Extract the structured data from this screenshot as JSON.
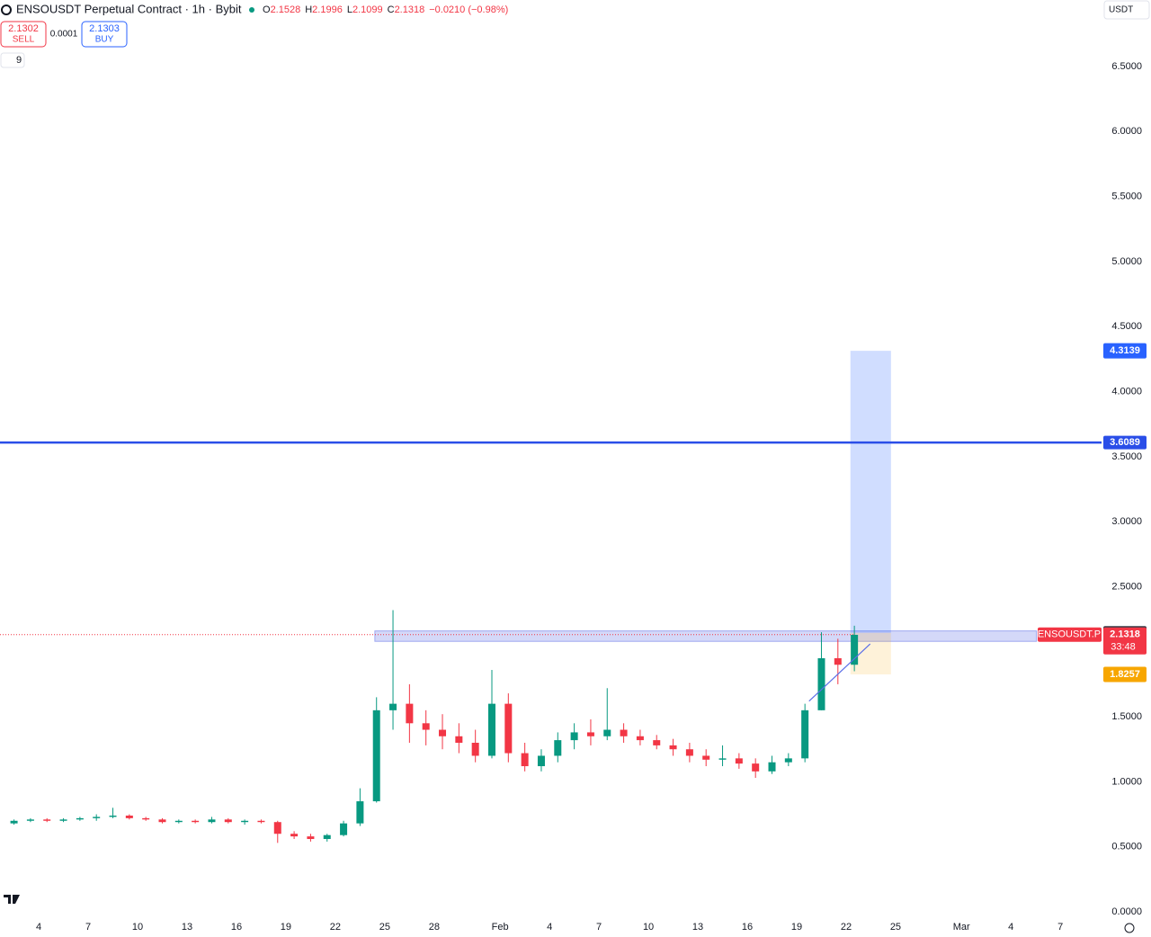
{
  "header": {
    "title": "ENSOUSDT Perpetual Contract · 1h · Bybit",
    "ohlc": [
      {
        "label": "O",
        "value": "2.1528"
      },
      {
        "label": "H",
        "value": "2.1996"
      },
      {
        "label": "L",
        "value": "2.1099"
      },
      {
        "label": "C",
        "value": "2.1318"
      }
    ],
    "change": "−0.0210 (−0.98%)",
    "sell": {
      "price": "2.1302",
      "label": "SELL"
    },
    "spread": "0.0001",
    "buy": {
      "price": "2.1303",
      "label": "BUY"
    },
    "indicators": "9",
    "currency": "USDT"
  },
  "chart_data": {
    "type": "candlestick",
    "x": [
      2.5,
      3.5,
      4.5,
      5.5,
      6.5,
      7.5,
      8.5,
      9.5,
      10.5,
      11.5,
      12.5,
      13.5,
      14.5,
      15.5,
      16.5,
      17.5,
      18.5,
      19.5,
      20.5,
      21.5,
      22.5,
      23.5,
      24.5,
      25.5,
      26.5,
      27.5,
      28.5,
      29.5,
      30.5,
      31.5,
      32.5,
      33.5,
      34.5,
      35.5,
      36.5,
      37.5,
      38.5,
      39.5,
      40.5,
      41.5,
      42.5,
      43.5,
      44.5,
      45.5,
      46.5,
      47.5,
      48.5,
      49.5,
      50.5,
      51.5,
      52.5,
      53.5
    ],
    "open": [
      0.68,
      0.7,
      0.71,
      0.7,
      0.71,
      0.72,
      0.73,
      0.74,
      0.72,
      0.71,
      0.69,
      0.7,
      0.69,
      0.71,
      0.69,
      0.7,
      0.69,
      0.6,
      0.58,
      0.56,
      0.59,
      0.68,
      0.85,
      1.55,
      1.6,
      1.45,
      1.4,
      1.35,
      1.3,
      1.2,
      1.6,
      1.22,
      1.12,
      1.2,
      1.32,
      1.38,
      1.35,
      1.4,
      1.35,
      1.32,
      1.28,
      1.25,
      1.2,
      1.17,
      1.18,
      1.14,
      1.08,
      1.15,
      1.18,
      1.55,
      1.95,
      1.9
    ],
    "high": [
      0.71,
      0.72,
      0.72,
      0.72,
      0.73,
      0.75,
      0.8,
      0.75,
      0.73,
      0.72,
      0.71,
      0.71,
      0.73,
      0.72,
      0.71,
      0.71,
      0.7,
      0.62,
      0.6,
      0.6,
      0.7,
      0.95,
      1.65,
      2.32,
      1.75,
      1.55,
      1.52,
      1.45,
      1.4,
      1.86,
      1.68,
      1.3,
      1.25,
      1.38,
      1.45,
      1.48,
      1.72,
      1.45,
      1.4,
      1.36,
      1.33,
      1.3,
      1.25,
      1.28,
      1.22,
      1.18,
      1.2,
      1.22,
      1.6,
      2.15,
      2.1,
      2.2
    ],
    "low": [
      0.67,
      0.69,
      0.69,
      0.69,
      0.7,
      0.7,
      0.72,
      0.71,
      0.7,
      0.68,
      0.68,
      0.68,
      0.68,
      0.68,
      0.67,
      0.68,
      0.53,
      0.56,
      0.54,
      0.54,
      0.58,
      0.66,
      0.84,
      1.4,
      1.3,
      1.28,
      1.25,
      1.22,
      1.15,
      1.18,
      1.15,
      1.08,
      1.08,
      1.15,
      1.25,
      1.28,
      1.32,
      1.3,
      1.28,
      1.25,
      1.2,
      1.15,
      1.12,
      1.12,
      1.1,
      1.03,
      1.06,
      1.12,
      1.15,
      1.55,
      1.75,
      1.85
    ],
    "close": [
      0.7,
      0.71,
      0.7,
      0.71,
      0.72,
      0.73,
      0.74,
      0.72,
      0.71,
      0.69,
      0.7,
      0.69,
      0.71,
      0.69,
      0.7,
      0.69,
      0.6,
      0.58,
      0.56,
      0.59,
      0.68,
      0.85,
      1.55,
      1.6,
      1.45,
      1.4,
      1.35,
      1.3,
      1.2,
      1.6,
      1.22,
      1.12,
      1.2,
      1.32,
      1.38,
      1.35,
      1.4,
      1.35,
      1.32,
      1.28,
      1.25,
      1.2,
      1.17,
      1.18,
      1.14,
      1.08,
      1.15,
      1.18,
      1.55,
      1.95,
      1.9,
      2.13
    ],
    "up_color": "#089981",
    "down_color": "#f23645",
    "xlim": [
      1.65,
      68.5
    ],
    "xticks": [
      {
        "value": 4,
        "label": "4"
      },
      {
        "value": 7,
        "label": "7"
      },
      {
        "value": 10,
        "label": "10"
      },
      {
        "value": 13,
        "label": "13"
      },
      {
        "value": 16,
        "label": "16"
      },
      {
        "value": 19,
        "label": "19"
      },
      {
        "value": 22,
        "label": "22"
      },
      {
        "value": 25,
        "label": "25"
      },
      {
        "value": 28,
        "label": "28"
      },
      {
        "value": 32,
        "label": "Feb"
      },
      {
        "value": 35,
        "label": "4"
      },
      {
        "value": 38,
        "label": "7"
      },
      {
        "value": 41,
        "label": "10"
      },
      {
        "value": 44,
        "label": "13"
      },
      {
        "value": 47,
        "label": "16"
      },
      {
        "value": 50,
        "label": "19"
      },
      {
        "value": 53,
        "label": "22"
      },
      {
        "value": 56,
        "label": "25"
      },
      {
        "value": 60,
        "label": "Mar"
      },
      {
        "value": 63,
        "label": "4"
      },
      {
        "value": 66,
        "label": "7"
      }
    ],
    "ylim": [
      0,
      6.5
    ],
    "yticks": [
      {
        "value": 0,
        "label": "0.0000"
      },
      {
        "value": 0.5,
        "label": "0.5000"
      },
      {
        "value": 1,
        "label": "1.0000"
      },
      {
        "value": 1.5,
        "label": "1.5000"
      },
      {
        "value": 2,
        "label": "2.0000"
      },
      {
        "value": 2.5,
        "label": "2.5000"
      },
      {
        "value": 3,
        "label": "3.0000"
      },
      {
        "value": 3.5,
        "label": "3.5000"
      },
      {
        "value": 4,
        "label": "4.0000"
      },
      {
        "value": 4.5,
        "label": "4.5000"
      },
      {
        "value": 5,
        "label": "5.0000"
      },
      {
        "value": 5.5,
        "label": "5.5000"
      },
      {
        "value": 6,
        "label": "6.0000"
      },
      {
        "value": 6.5,
        "label": "6.5000"
      }
    ],
    "horizontal_line": {
      "value": 3.6089,
      "color": "#2a4ee8"
    },
    "zone": {
      "x": [
        24.4,
        64.55
      ],
      "y": [
        2.08,
        2.16
      ],
      "color": "#9fa8f0"
    },
    "trendline": {
      "x": [
        50.75,
        54.46
      ],
      "y": [
        1.62,
        2.06
      ],
      "color": "#5b6ee8"
    },
    "position": {
      "x": [
        53.26,
        55.72
      ],
      "entry": 2.1454,
      "target": 4.3139,
      "stop": 1.8257,
      "target_color": "#2962ff",
      "stop_color": "#f7a600"
    },
    "last_price": {
      "symbol": "ENSOUSDT.P",
      "value": 2.1318,
      "countdown": "33:48",
      "color": "#f23645"
    }
  }
}
